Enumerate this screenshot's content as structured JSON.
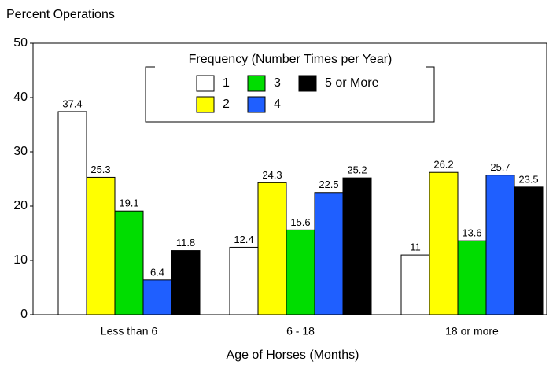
{
  "chart_data": {
    "type": "bar",
    "y_label": "Percent Operations",
    "x_label": "Age of Horses (Months)",
    "legend_title": "Frequency (Number Times per Year)",
    "categories": [
      "Less than 6",
      "6 - 18",
      "18 or more"
    ],
    "series": [
      {
        "name": "1",
        "color": "#ffffff",
        "values": [
          37.4,
          12.4,
          11
        ]
      },
      {
        "name": "2",
        "color": "#ffff00",
        "values": [
          25.3,
          24.3,
          26.2
        ]
      },
      {
        "name": "3",
        "color": "#00dd00",
        "values": [
          19.1,
          15.6,
          13.6
        ]
      },
      {
        "name": "4",
        "color": "#1f5fff",
        "values": [
          6.4,
          22.5,
          25.7
        ]
      },
      {
        "name": "5 or More",
        "color": "#000000",
        "values": [
          11.8,
          25.2,
          23.5
        ]
      }
    ],
    "ylim": [
      0,
      50
    ],
    "yticks": [
      0,
      10,
      20,
      30,
      40,
      50
    ]
  }
}
